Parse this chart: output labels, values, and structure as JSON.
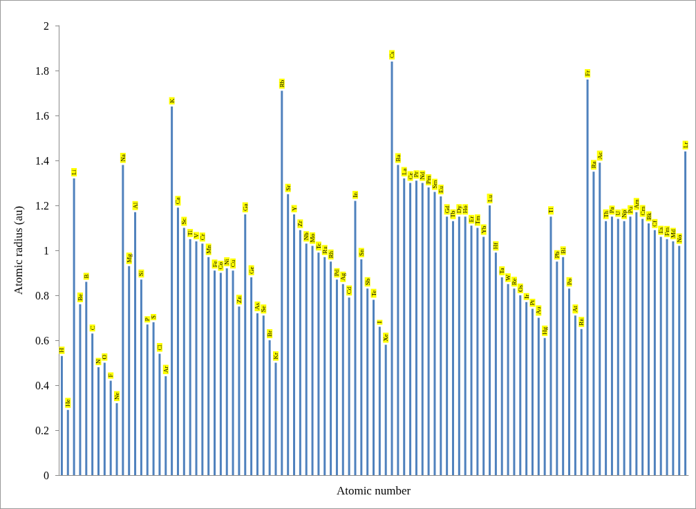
{
  "chart_data": {
    "type": "bar",
    "xlabel": "Atomic number",
    "ylabel": "Atomic radius (au)",
    "color": "#4f81bd",
    "categories": [
      "H",
      "He",
      "Li",
      "Be",
      "B",
      "C",
      "N",
      "O",
      "F",
      "Ne",
      "Na",
      "Mg",
      "Al",
      "Si",
      "P",
      "S",
      "Cl",
      "Ar",
      "K",
      "Ca",
      "Sc",
      "Ti",
      "V",
      "Cr",
      "Mn",
      "Fe",
      "Co",
      "Ni",
      "Cu",
      "Zn",
      "Ga",
      "Ge",
      "As",
      "Se",
      "Br",
      "Kr",
      "Rb",
      "Sr",
      "Y",
      "Zr",
      "Nb",
      "Mo",
      "Tc",
      "Ru",
      "Rh",
      "Pd",
      "Ag",
      "Cd",
      "In",
      "Sn",
      "Sb",
      "Te",
      "I",
      "Xe",
      "Cs",
      "Ba",
      "La",
      "Ce",
      "Pr",
      "Nd",
      "Pm",
      "Sm",
      "Eu",
      "Gd",
      "Tb",
      "Dy",
      "Ho",
      "Er",
      "Tm",
      "Yb",
      "Lu",
      "Hf",
      "Ta",
      "W",
      "Re",
      "Os",
      "Ir",
      "Pt",
      "Au",
      "Hg",
      "Tl",
      "Pb",
      "Bi",
      "Po",
      "At",
      "Rn",
      "Fr",
      "Ra",
      "Ac",
      "Th",
      "Pa",
      "U",
      "Np",
      "Pu",
      "Am",
      "Cm",
      "Bk",
      "Cf",
      "Es",
      "Fm",
      "Md",
      "No",
      "Lr"
    ],
    "values": [
      0.53,
      0.29,
      1.32,
      0.76,
      0.86,
      0.63,
      0.48,
      0.5,
      0.42,
      0.32,
      1.38,
      0.93,
      1.17,
      0.87,
      0.67,
      0.68,
      0.54,
      0.44,
      1.64,
      1.19,
      1.1,
      1.05,
      1.04,
      1.03,
      0.97,
      0.91,
      0.9,
      0.92,
      0.91,
      0.75,
      1.16,
      0.88,
      0.72,
      0.71,
      0.6,
      0.5,
      1.71,
      1.25,
      1.16,
      1.09,
      1.03,
      1.02,
      0.99,
      0.97,
      0.95,
      0.87,
      0.85,
      0.79,
      1.22,
      0.96,
      0.83,
      0.78,
      0.66,
      0.58,
      1.84,
      1.38,
      1.32,
      1.3,
      1.31,
      1.3,
      1.28,
      1.26,
      1.24,
      1.15,
      1.13,
      1.15,
      1.15,
      1.11,
      1.1,
      1.06,
      1.2,
      0.99,
      0.88,
      0.85,
      0.83,
      0.8,
      0.77,
      0.74,
      0.7,
      0.61,
      1.15,
      0.95,
      0.97,
      0.83,
      0.71,
      0.65,
      1.76,
      1.35,
      1.39,
      1.13,
      1.15,
      1.14,
      1.13,
      1.15,
      1.17,
      1.14,
      1.12,
      1.09,
      1.06,
      1.05,
      1.04,
      1.02,
      1.44
    ],
    "ylim": [
      0,
      2
    ],
    "yticks": [
      0,
      0.2,
      0.4,
      0.6,
      0.8,
      1,
      1.2,
      1.4,
      1.6,
      1.8,
      2
    ],
    "grid": false,
    "tick_labels": "y"
  }
}
